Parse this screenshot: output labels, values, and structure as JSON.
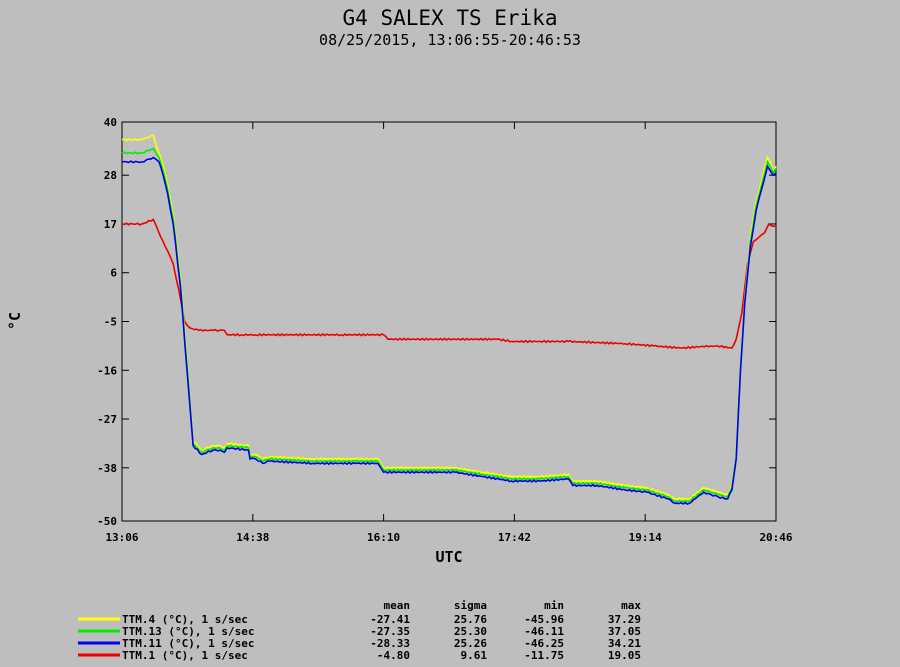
{
  "chart_data": {
    "type": "line",
    "title": "G4 SALEX TS Erika",
    "subtitle": "08/25/2015, 13:06:55-20:46:53",
    "xlabel": "UTC",
    "ylabel": "°C",
    "x_ticks": [
      "13:06",
      "14:38",
      "16:10",
      "17:42",
      "19:14",
      "20:46"
    ],
    "x_tick_minutes": [
      786,
      878,
      970,
      1062,
      1154,
      1246
    ],
    "xlim_minutes": [
      786,
      1246
    ],
    "y_ticks": [
      40,
      28,
      17,
      6,
      -5,
      -16,
      -27,
      -38,
      -50
    ],
    "ylim": [
      -50,
      40
    ],
    "grid": false,
    "stat_headers": [
      "mean",
      "sigma",
      "min",
      "max"
    ],
    "series": [
      {
        "name": "TTM.4 (°C), 1 s/sec",
        "color": "#ffff00",
        "stats": [
          "-27.41",
          "25.76",
          "-45.96",
          "37.29"
        ],
        "x_minutes": [
          786,
          800,
          808,
          812,
          815,
          818,
          822,
          827,
          832,
          836,
          842,
          850,
          855,
          858,
          860,
          875,
          876,
          880,
          885,
          890,
          920,
          950,
          966,
          968,
          970,
          1020,
          1040,
          1060,
          1080,
          1100,
          1103,
          1120,
          1140,
          1155,
          1170,
          1175,
          1185,
          1195,
          1200,
          1205,
          1210,
          1212,
          1215,
          1218,
          1221,
          1224,
          1228,
          1232,
          1236,
          1240,
          1242,
          1244,
          1246
        ],
        "y": [
          36,
          36,
          37,
          33,
          30,
          26,
          19,
          5,
          -15,
          -32,
          -34,
          -33,
          -33,
          -33.5,
          -32.5,
          -33,
          -35,
          -35,
          -36,
          -35.5,
          -36,
          -36,
          -36,
          -37,
          -38,
          -38,
          -39,
          -40,
          -40,
          -39.5,
          -41,
          -41,
          -42,
          -42.5,
          -44,
          -45,
          -45,
          -42.5,
          -43,
          -43.5,
          -44,
          -44,
          -42,
          -35,
          -15,
          0,
          14,
          22,
          27,
          32,
          31,
          29,
          30
        ]
      },
      {
        "name": "TTM.13 (°C), 1 s/sec",
        "color": "#00ee00",
        "stats": [
          "-27.35",
          "25.30",
          "-46.11",
          "37.05"
        ],
        "x_minutes": [
          786,
          800,
          808,
          812,
          815,
          818,
          822,
          827,
          832,
          836,
          842,
          850,
          855,
          858,
          860,
          875,
          876,
          880,
          885,
          890,
          920,
          950,
          966,
          968,
          970,
          1020,
          1040,
          1060,
          1080,
          1100,
          1103,
          1120,
          1140,
          1155,
          1170,
          1175,
          1185,
          1195,
          1200,
          1205,
          1210,
          1212,
          1215,
          1218,
          1221,
          1224,
          1228,
          1232,
          1236,
          1240,
          1242,
          1244,
          1246
        ],
        "y": [
          33,
          33,
          34,
          32,
          29,
          25,
          18,
          4,
          -16,
          -32.5,
          -34.5,
          -33.5,
          -33.5,
          -34,
          -33,
          -33.5,
          -35.5,
          -35.5,
          -36.5,
          -36,
          -36.5,
          -36.5,
          -36.5,
          -37.5,
          -38.5,
          -38.5,
          -39.5,
          -40.5,
          -40.5,
          -40,
          -41.5,
          -41.5,
          -42.5,
          -43,
          -44.5,
          -45.5,
          -45.5,
          -43,
          -43.5,
          -44,
          -44.5,
          -44.5,
          -42.5,
          -35.5,
          -15.5,
          -0.5,
          13,
          21,
          26,
          31,
          30,
          28.5,
          29.5
        ]
      },
      {
        "name": "TTM.11 (°C), 1 s/sec",
        "color": "#0000ee",
        "stats": [
          "-28.33",
          "25.26",
          "-46.25",
          "34.21"
        ],
        "x_minutes": [
          786,
          800,
          808,
          812,
          815,
          818,
          822,
          827,
          832,
          836,
          842,
          850,
          855,
          858,
          860,
          875,
          876,
          880,
          885,
          890,
          920,
          950,
          966,
          968,
          970,
          1020,
          1040,
          1060,
          1080,
          1100,
          1103,
          1120,
          1140,
          1155,
          1170,
          1175,
          1185,
          1195,
          1200,
          1205,
          1210,
          1212,
          1215,
          1218,
          1221,
          1224,
          1228,
          1232,
          1236,
          1240,
          1242,
          1244,
          1246
        ],
        "y": [
          31,
          31,
          32,
          31,
          28,
          24,
          17,
          3,
          -17,
          -33,
          -35,
          -34,
          -34,
          -34.5,
          -33.5,
          -34,
          -36,
          -36,
          -37,
          -36.5,
          -37,
          -37,
          -37,
          -38,
          -39,
          -39,
          -40,
          -41,
          -41,
          -40.5,
          -42,
          -42,
          -43,
          -43.5,
          -45,
          -46,
          -46,
          -43.5,
          -44,
          -44.5,
          -45,
          -45,
          -43,
          -36,
          -16,
          -1,
          12,
          20,
          25,
          30,
          29,
          28,
          28.5
        ]
      },
      {
        "name": "TTM.1 (°C), 1 s/sec",
        "color": "#ee0000",
        "stats": [
          "-4.80",
          "9.61",
          "-11.75",
          "19.05"
        ],
        "x_minutes": [
          786,
          800,
          808,
          812,
          815,
          818,
          822,
          826,
          830,
          834,
          840,
          850,
          858,
          860,
          870,
          880,
          940,
          970,
          973,
          990,
          1020,
          1050,
          1060,
          1080,
          1100,
          1140,
          1160,
          1180,
          1200,
          1205,
          1215,
          1218,
          1222,
          1226,
          1230,
          1234,
          1238,
          1241,
          1244,
          1246
        ],
        "y": [
          17,
          17,
          18,
          15,
          13,
          11,
          8,
          2,
          -5,
          -6.5,
          -7,
          -7,
          -7,
          -8,
          -8,
          -8,
          -8,
          -8,
          -9,
          -9,
          -9,
          -9,
          -9.5,
          -9.5,
          -9.5,
          -10,
          -10.5,
          -11,
          -10.5,
          -10.5,
          -11,
          -9,
          -3,
          8,
          13,
          14,
          15,
          17,
          16.5,
          16.5
        ]
      }
    ]
  }
}
